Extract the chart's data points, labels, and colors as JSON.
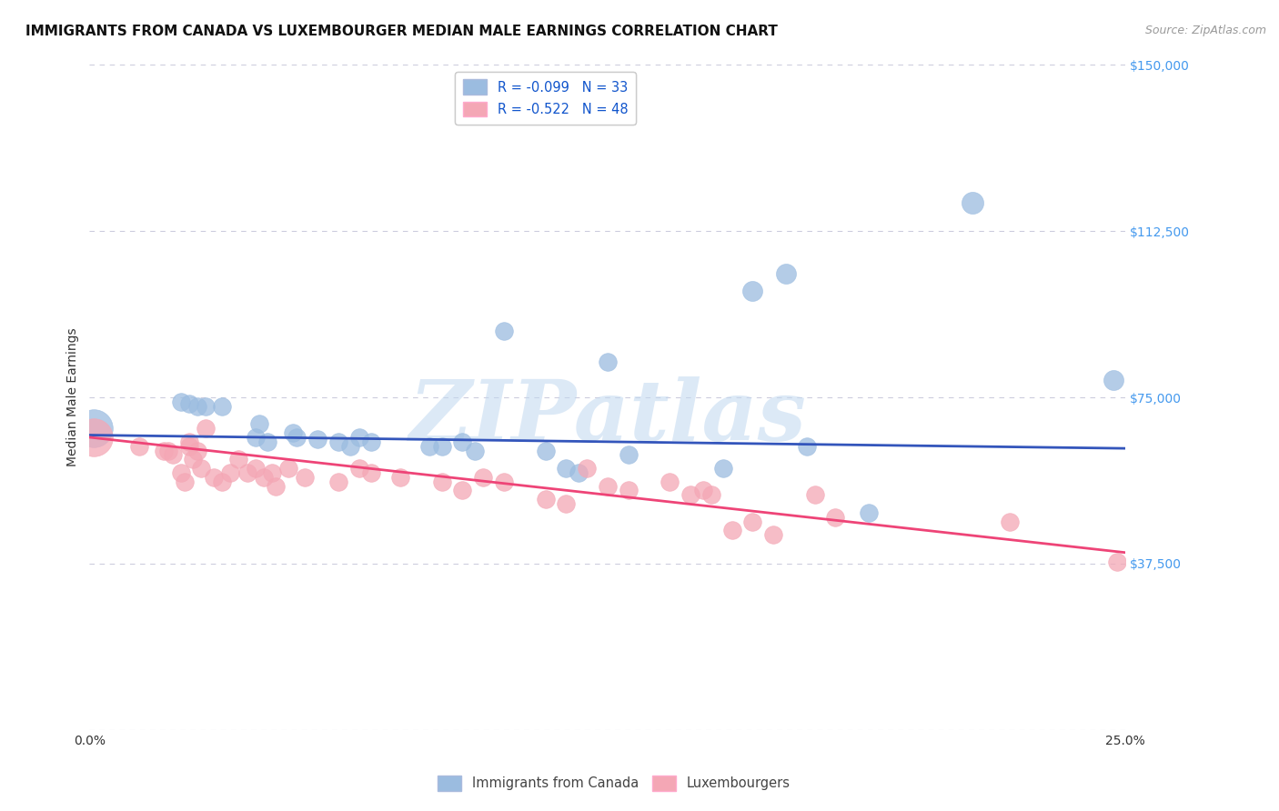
{
  "title": "IMMIGRANTS FROM CANADA VS LUXEMBOURGER MEDIAN MALE EARNINGS CORRELATION CHART",
  "source": "Source: ZipAtlas.com",
  "ylabel": "Median Male Earnings",
  "xlim": [
    0.0,
    0.25
  ],
  "ylim": [
    0,
    150000
  ],
  "yticks": [
    0,
    37500,
    75000,
    112500,
    150000
  ],
  "ytick_labels": [
    "",
    "$37,500",
    "$75,000",
    "$112,500",
    "$150,000"
  ],
  "xticks": [
    0.0,
    0.05,
    0.1,
    0.15,
    0.2,
    0.25
  ],
  "xtick_labels": [
    "0.0%",
    "",
    "",
    "",
    "",
    "25.0%"
  ],
  "watermark": "ZIPatlas",
  "legend1_label": "R = -0.099   N = 33",
  "legend2_label": "R = -0.522   N = 48",
  "legend_bottom_label1": "Immigrants from Canada",
  "legend_bottom_label2": "Luxembourgers",
  "blue_color": "#9BBCE0",
  "pink_color": "#F4A7B5",
  "blue_line_color": "#3355BB",
  "pink_line_color": "#EE4477",
  "canada_points": [
    [
      0.001,
      68000,
      900
    ],
    [
      0.022,
      74000,
      200
    ],
    [
      0.024,
      73500,
      200
    ],
    [
      0.026,
      73000,
      200
    ],
    [
      0.028,
      73000,
      200
    ],
    [
      0.032,
      73000,
      200
    ],
    [
      0.04,
      66000,
      200
    ],
    [
      0.041,
      69000,
      200
    ],
    [
      0.043,
      65000,
      200
    ],
    [
      0.049,
      67000,
      200
    ],
    [
      0.05,
      66000,
      200
    ],
    [
      0.055,
      65500,
      200
    ],
    [
      0.06,
      65000,
      200
    ],
    [
      0.063,
      64000,
      200
    ],
    [
      0.065,
      66000,
      200
    ],
    [
      0.068,
      65000,
      200
    ],
    [
      0.082,
      64000,
      200
    ],
    [
      0.085,
      64000,
      200
    ],
    [
      0.09,
      65000,
      200
    ],
    [
      0.093,
      63000,
      200
    ],
    [
      0.1,
      90000,
      200
    ],
    [
      0.11,
      63000,
      200
    ],
    [
      0.115,
      59000,
      200
    ],
    [
      0.118,
      58000,
      200
    ],
    [
      0.125,
      83000,
      200
    ],
    [
      0.13,
      62000,
      200
    ],
    [
      0.153,
      59000,
      200
    ],
    [
      0.16,
      99000,
      250
    ],
    [
      0.168,
      103000,
      250
    ],
    [
      0.173,
      64000,
      200
    ],
    [
      0.188,
      49000,
      200
    ],
    [
      0.213,
      119000,
      300
    ],
    [
      0.247,
      79000,
      250
    ]
  ],
  "lux_points": [
    [
      0.001,
      66000,
      900
    ],
    [
      0.012,
      64000,
      200
    ],
    [
      0.018,
      63000,
      200
    ],
    [
      0.019,
      63000,
      200
    ],
    [
      0.02,
      62000,
      200
    ],
    [
      0.022,
      58000,
      200
    ],
    [
      0.023,
      56000,
      200
    ],
    [
      0.024,
      65000,
      200
    ],
    [
      0.024,
      64000,
      200
    ],
    [
      0.025,
      61000,
      200
    ],
    [
      0.026,
      63000,
      200
    ],
    [
      0.027,
      59000,
      200
    ],
    [
      0.028,
      68000,
      200
    ],
    [
      0.03,
      57000,
      200
    ],
    [
      0.032,
      56000,
      200
    ],
    [
      0.034,
      58000,
      200
    ],
    [
      0.036,
      61000,
      200
    ],
    [
      0.038,
      58000,
      200
    ],
    [
      0.04,
      59000,
      200
    ],
    [
      0.042,
      57000,
      200
    ],
    [
      0.044,
      58000,
      200
    ],
    [
      0.045,
      55000,
      200
    ],
    [
      0.048,
      59000,
      200
    ],
    [
      0.052,
      57000,
      200
    ],
    [
      0.06,
      56000,
      200
    ],
    [
      0.065,
      59000,
      200
    ],
    [
      0.068,
      58000,
      200
    ],
    [
      0.075,
      57000,
      200
    ],
    [
      0.085,
      56000,
      200
    ],
    [
      0.09,
      54000,
      200
    ],
    [
      0.095,
      57000,
      200
    ],
    [
      0.1,
      56000,
      200
    ],
    [
      0.11,
      52000,
      200
    ],
    [
      0.115,
      51000,
      200
    ],
    [
      0.12,
      59000,
      200
    ],
    [
      0.125,
      55000,
      200
    ],
    [
      0.13,
      54000,
      200
    ],
    [
      0.14,
      56000,
      200
    ],
    [
      0.145,
      53000,
      200
    ],
    [
      0.148,
      54000,
      200
    ],
    [
      0.15,
      53000,
      200
    ],
    [
      0.155,
      45000,
      200
    ],
    [
      0.16,
      47000,
      200
    ],
    [
      0.165,
      44000,
      200
    ],
    [
      0.175,
      53000,
      200
    ],
    [
      0.18,
      48000,
      200
    ],
    [
      0.222,
      47000,
      200
    ],
    [
      0.248,
      38000,
      200
    ]
  ],
  "canada_line": [
    0.0,
    66500,
    0.25,
    63500
  ],
  "lux_line": [
    0.0,
    66000,
    0.25,
    40000
  ],
  "background_color": "#FFFFFF",
  "grid_color": "#CCCCDD",
  "title_fontsize": 11,
  "axis_label_fontsize": 10,
  "tick_fontsize": 10,
  "ytick_color": "#4499EE"
}
